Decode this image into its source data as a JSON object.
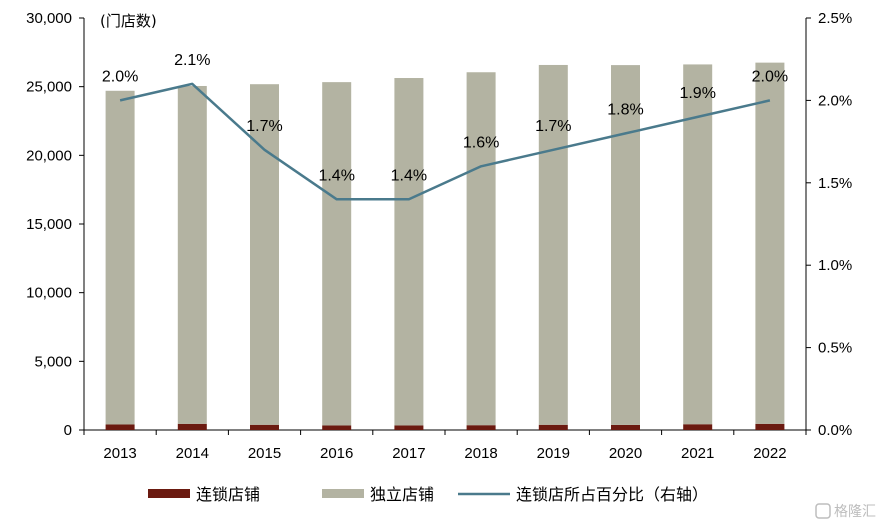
{
  "chart_data": {
    "type": "bar",
    "categories": [
      "2013",
      "2014",
      "2015",
      "2016",
      "2017",
      "2018",
      "2019",
      "2020",
      "2021",
      "2022"
    ],
    "series": [
      {
        "name": "连锁店铺",
        "kind": "bar",
        "axis": "left",
        "color": "#6b1a10",
        "values": [
          400,
          450,
          380,
          330,
          330,
          350,
          380,
          370,
          420,
          450
        ]
      },
      {
        "name": "独立店铺",
        "kind": "bar",
        "axis": "left",
        "color": "#b3b3a2",
        "values": [
          24300,
          24600,
          24800,
          25000,
          25300,
          25700,
          26200,
          26200,
          26200,
          26300
        ]
      },
      {
        "name": "连锁店所占百分比（右轴）",
        "kind": "line",
        "axis": "right",
        "color": "#4a7a8c",
        "values": [
          0.02,
          0.021,
          0.017,
          0.014,
          0.014,
          0.016,
          0.017,
          0.018,
          0.019,
          0.02
        ],
        "labels": [
          "2.0%",
          "2.1%",
          "1.7%",
          "1.4%",
          "1.4%",
          "1.6%",
          "1.7%",
          "1.8%",
          "1.9%",
          "2.0%"
        ]
      }
    ],
    "stacked": true,
    "title": "",
    "xlabel": "",
    "ylabel": "(门店数)",
    "ylim": [
      0,
      30000
    ],
    "yticks": [
      "0",
      "5,000",
      "10,000",
      "15,000",
      "20,000",
      "25,000",
      "30,000"
    ],
    "y2lim": [
      0,
      0.025
    ],
    "y2ticks": [
      "0.0%",
      "0.5%",
      "1.0%",
      "1.5%",
      "2.0%",
      "2.5%"
    ],
    "grid": false,
    "legend_position": "bottom"
  },
  "watermark": "格隆汇"
}
